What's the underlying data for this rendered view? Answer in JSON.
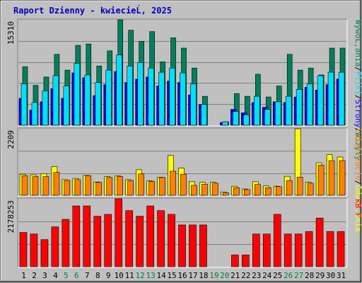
{
  "title": "Raport Dzienny -  kwiecieĹ‚  2025",
  "colors": {
    "title": "#0000c0",
    "background": "#c0c0c0",
    "visits": "#00805c",
    "pages": "#0000ff",
    "files": "#00e0ff",
    "sites": "#ff8000",
    "hits_in_sites": "#ffff00",
    "kbf": "#ff0000",
    "weekday_label": "#000000",
    "weekend_label": "#008040"
  },
  "chart_data": [
    {
      "type": "bar",
      "title": "Wizyty / Strony / Pliki / WywoĹ‚ania",
      "ymax_label": "15310",
      "ylim": [
        0,
        15310
      ],
      "grid": true,
      "legend_right": [
        "WywoĹ‚ania",
        "/",
        "Pliki",
        "/",
        "Strony",
        "/",
        "Wizyty"
      ],
      "categories": [
        "1",
        "2",
        "3",
        "4",
        "5",
        "6",
        "7",
        "8",
        "9",
        "10",
        "11",
        "12",
        "13",
        "14",
        "15",
        "16",
        "17",
        "18",
        "19",
        "20",
        "21",
        "22",
        "23",
        "24",
        "25",
        "26",
        "27",
        "28",
        "29",
        "30",
        "31"
      ],
      "series": [
        {
          "name": "WywoĹ‚ania",
          "values": [
            8500,
            5800,
            7000,
            10300,
            8000,
            11600,
            11800,
            8600,
            10800,
            15310,
            13800,
            12200,
            13600,
            9200,
            12700,
            11200,
            8300,
            4200,
            0,
            500,
            4600,
            4200,
            7400,
            4100,
            5700,
            10300,
            8000,
            8300,
            7300,
            11200,
            11200
          ]
        },
        {
          "name": "Pliki",
          "values": [
            6000,
            3300,
            5000,
            7200,
            5700,
            9000,
            7300,
            6200,
            8000,
            10200,
            8600,
            9100,
            8300,
            7700,
            8300,
            7600,
            6000,
            3000,
            0,
            500,
            2000,
            1500,
            4200,
            2300,
            3400,
            4200,
            5200,
            6000,
            7200,
            7700,
            7700
          ]
        },
        {
          "name": "Strony",
          "values": [
            3900,
            2200,
            3400,
            5300,
            3900,
            7600,
            6900,
            4300,
            5900,
            7800,
            6200,
            6700,
            7000,
            5700,
            6400,
            6200,
            4400,
            3000,
            0,
            400,
            2300,
            1800,
            3300,
            2600,
            3400,
            3300,
            4100,
            5500,
            5100,
            5900,
            6700
          ]
        },
        {
          "name": "Wizyty",
          "values": [
            3900,
            2200,
            3400,
            5300,
            3900,
            7600,
            6900,
            4300,
            5900,
            7800,
            6200,
            6700,
            7000,
            5700,
            6400,
            6200,
            4400,
            3000,
            0,
            400,
            2300,
            1800,
            3300,
            2600,
            3400,
            3300,
            4100,
            5500,
            5100,
            5900,
            6700
          ]
        }
      ]
    },
    {
      "type": "bar",
      "title": "Lokalizacje / OdwoĹ‚ania",
      "ymax_label": "2209",
      "ylim": [
        0,
        2209
      ],
      "grid": true,
      "legend_right": [
        "Lokalizacje",
        "/",
        "OdwoĹ‚ania"
      ],
      "categories": [
        "1",
        "2",
        "3",
        "4",
        "5",
        "6",
        "7",
        "8",
        "9",
        "10",
        "11",
        "12",
        "13",
        "14",
        "15",
        "16",
        "17",
        "18",
        "19",
        "20",
        "21",
        "22",
        "23",
        "24",
        "25",
        "26",
        "27",
        "28",
        "29",
        "30",
        "31"
      ],
      "series": [
        {
          "name": "OdwoĹ‚ania",
          "values": [
            700,
            680,
            720,
            950,
            520,
            560,
            660,
            440,
            620,
            640,
            520,
            850,
            480,
            600,
            1320,
            900,
            450,
            430,
            430,
            110,
            300,
            210,
            450,
            310,
            300,
            630,
            2209,
            430,
            1080,
            1350,
            1270
          ]
        },
        {
          "name": "Lokalizacje",
          "values": [
            650,
            620,
            620,
            760,
            490,
            520,
            650,
            430,
            590,
            620,
            490,
            710,
            460,
            590,
            800,
            700,
            330,
            370,
            400,
            80,
            250,
            190,
            360,
            250,
            290,
            490,
            600,
            400,
            1000,
            1150,
            1150
          ]
        }
      ]
    },
    {
      "type": "bar",
      "title": "kB F",
      "ymax_label": "2178253",
      "ylim": [
        0,
        2178253
      ],
      "grid": true,
      "legend_right": [
        "kB F"
      ],
      "categories": [
        "1",
        "2",
        "3",
        "4",
        "5",
        "6",
        "7",
        "8",
        "9",
        "10",
        "11",
        "12",
        "13",
        "14",
        "15",
        "16",
        "17",
        "18",
        "19",
        "20",
        "21",
        "22",
        "23",
        "24",
        "25",
        "26",
        "27",
        "28",
        "29",
        "30",
        "31"
      ],
      "series": [
        {
          "name": "kB F",
          "values": [
            1100000,
            1050000,
            870000,
            1280000,
            1520000,
            1950000,
            1950000,
            1620000,
            1680000,
            2178253,
            1800000,
            1620000,
            1950000,
            1800000,
            1680000,
            1340000,
            1340000,
            1340000,
            0,
            0,
            380000,
            380000,
            1050000,
            1050000,
            1680000,
            1050000,
            1050000,
            1130000,
            1560000,
            1130000,
            1130000
          ]
        }
      ]
    }
  ],
  "weekend_days": [
    5,
    6,
    12,
    13,
    19,
    20,
    26,
    27
  ]
}
